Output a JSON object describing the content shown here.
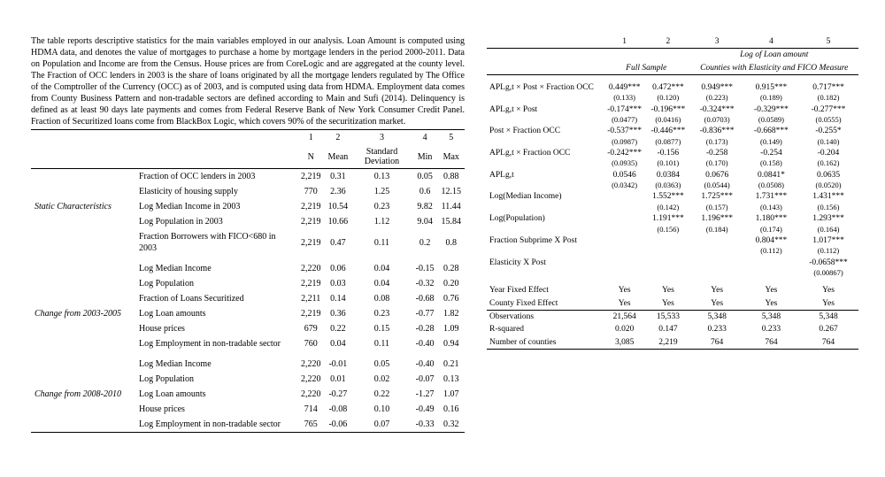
{
  "left": {
    "preamble": "The table reports descriptive statistics for the main variables employed in our analysis. Loan Amount is computed using HDMA data, and denotes the value of mortgages to purchase a home by mortgage lenders in the period 2000-2011. Data on Population and Income are from the Census. House prices are from CoreLogic and are aggregated at the county level. The Fraction of OCC lenders in 2003 is the share of loans originated by all the mortgage lenders regulated by The Office of the Comptroller of the Currency (OCC) as of 2003, and is computed using data from HDMA. Employment data comes from County Business Pattern and non-tradable sectors are defined according to Main and Sufi (2014). Delinquency is defined as at least 90 days late payments and comes from Federal Reserve Bank of New York Consumer Credit Panel. Fraction of Securitized loans come from BlackBox Logic, which covers 90% of the securitization market.",
    "col_nums": [
      "1",
      "2",
      "3",
      "4",
      "5"
    ],
    "col_names": [
      "N",
      "Mean",
      "Standard Deviation",
      "Min",
      "Max"
    ],
    "sections": [
      {
        "title": "Static Characteristics",
        "rows": [
          {
            "label": "Fraction of OCC lenders in 2003",
            "vals": [
              "2,219",
              "0.31",
              "0.13",
              "0.05",
              "0.88"
            ]
          },
          {
            "label": "Elasticity of housing supply",
            "vals": [
              "770",
              "2.36",
              "1.25",
              "0.6",
              "12.15"
            ]
          },
          {
            "label": "Log Median Income in 2003",
            "vals": [
              "2,219",
              "10.54",
              "0.23",
              "9.82",
              "11.44"
            ]
          },
          {
            "label": "Log Population in 2003",
            "vals": [
              "2,219",
              "10.66",
              "1.12",
              "9.04",
              "15.84"
            ]
          },
          {
            "label": "Fraction Borrowers with FICO<680 in 2003",
            "vals": [
              "2,219",
              "0.47",
              "0.11",
              "0.2",
              "0.8"
            ]
          }
        ]
      },
      {
        "title": "Change from 2003-2005",
        "rows": [
          {
            "label": "Log Median Income",
            "vals": [
              "2,220",
              "0.06",
              "0.04",
              "-0.15",
              "0.28"
            ]
          },
          {
            "label": "Log Population",
            "vals": [
              "2,219",
              "0.03",
              "0.04",
              "-0.32",
              "0.20"
            ]
          },
          {
            "label": "Fraction of Loans Securitized",
            "vals": [
              "2,211",
              "0.14",
              "0.08",
              "-0.68",
              "0.76"
            ]
          },
          {
            "label": "Log Loan amounts",
            "vals": [
              "2,219",
              "0.36",
              "0.23",
              "-0.77",
              "1.82"
            ]
          },
          {
            "label": "House prices",
            "vals": [
              "679",
              "0.22",
              "0.15",
              "-0.28",
              "1.09"
            ]
          },
          {
            "label": "Log Employment in non-tradable sector",
            "vals": [
              "760",
              "0.04",
              "0.11",
              "-0.40",
              "0.94"
            ]
          }
        ]
      },
      {
        "title": "Change from 2008-2010",
        "rows": [
          {
            "label": "Log Median Income",
            "vals": [
              "2,220",
              "-0.01",
              "0.05",
              "-0.40",
              "0.21"
            ]
          },
          {
            "label": "Log Population",
            "vals": [
              "2,220",
              "0.01",
              "0.02",
              "-0.07",
              "0.13"
            ]
          },
          {
            "label": "Log Loan amounts",
            "vals": [
              "2,220",
              "-0.27",
              "0.22",
              "-1.27",
              "1.07"
            ]
          },
          {
            "label": "House prices",
            "vals": [
              "714",
              "-0.08",
              "0.10",
              "-0.49",
              "0.16"
            ]
          },
          {
            "label": "Log Employment in non-tradable sector",
            "vals": [
              "765",
              "-0.06",
              "0.07",
              "-0.33",
              "0.32"
            ]
          }
        ]
      }
    ]
  },
  "right": {
    "col_nums": [
      "1",
      "2",
      "3",
      "4",
      "5"
    ],
    "super_header": "Log of Loan amount",
    "span_left": "Full Sample",
    "span_right": "Counties with Elasticity and FICO Measure",
    "rows": [
      {
        "label": "APLg,t × Post × Fraction OCC",
        "vals": [
          "0.449***",
          "0.472***",
          "0.949***",
          "0.915***",
          "0.717***"
        ],
        "se": [
          "(0.133)",
          "(0.120)",
          "(0.223)",
          "(0.189)",
          "(0.182)"
        ]
      },
      {
        "label": "APLg,t × Post",
        "vals": [
          "-0.174***",
          "-0.196***",
          "-0.324***",
          "-0.329***",
          "-0.277***"
        ],
        "se": [
          "(0.0477)",
          "(0.0416)",
          "(0.0703)",
          "(0.0589)",
          "(0.0555)"
        ]
      },
      {
        "label": "Post × Fraction OCC",
        "vals": [
          "-0.537***",
          "-0.446***",
          "-0.836***",
          "-0.668***",
          "-0.255*"
        ],
        "se": [
          "(0.0987)",
          "(0.0877)",
          "(0.173)",
          "(0.149)",
          "(0.140)"
        ]
      },
      {
        "label": "APLg,t × Fraction OCC",
        "vals": [
          "-0.242***",
          "-0.156",
          "-0.258",
          "-0.254",
          "-0.204"
        ],
        "se": [
          "(0.0935)",
          "(0.101)",
          "(0.170)",
          "(0.158)",
          "(0.162)"
        ]
      },
      {
        "label": "APLg,t",
        "vals": [
          "0.0546",
          "0.0384",
          "0.0676",
          "0.0841*",
          "0.0635"
        ],
        "se": [
          "(0.0342)",
          "(0.0363)",
          "(0.0544)",
          "(0.0508)",
          "(0.0520)"
        ]
      },
      {
        "label": "Log(Median Income)",
        "vals": [
          "",
          "1.552***",
          "1.725***",
          "1.731***",
          "1.431***"
        ],
        "se": [
          "",
          "(0.142)",
          "(0.157)",
          "(0.143)",
          "(0.156)"
        ]
      },
      {
        "label": "Log(Population)",
        "vals": [
          "",
          "1.191***",
          "1.196***",
          "1.180***",
          "1.293***"
        ],
        "se": [
          "",
          "(0.156)",
          "(0.184)",
          "(0.174)",
          "(0.164)"
        ]
      },
      {
        "label": "Fraction Subprime X Post",
        "vals": [
          "",
          "",
          "",
          "0.804***",
          "1.017***"
        ],
        "se": [
          "",
          "",
          "",
          "(0.112)",
          "(0.112)"
        ]
      },
      {
        "label": "Elasticity X Post",
        "vals": [
          "",
          "",
          "",
          "",
          "-0.0658***"
        ],
        "se": [
          "",
          "",
          "",
          "",
          "(0.00867)"
        ]
      }
    ],
    "fixed": [
      {
        "label": "Year Fixed Effect",
        "vals": [
          "Yes",
          "Yes",
          "Yes",
          "Yes",
          "Yes"
        ]
      },
      {
        "label": "County Fixed Effect",
        "vals": [
          "Yes",
          "Yes",
          "Yes",
          "Yes",
          "Yes"
        ]
      }
    ],
    "footer": [
      {
        "label": "Observations",
        "vals": [
          "21,564",
          "15,533",
          "5,348",
          "5,348",
          "5,348"
        ]
      },
      {
        "label": "R-squared",
        "vals": [
          "0.020",
          "0.147",
          "0.233",
          "0.233",
          "0.267"
        ]
      },
      {
        "label": "Number of counties",
        "vals": [
          "3,085",
          "2,219",
          "764",
          "764",
          "764"
        ]
      }
    ]
  }
}
